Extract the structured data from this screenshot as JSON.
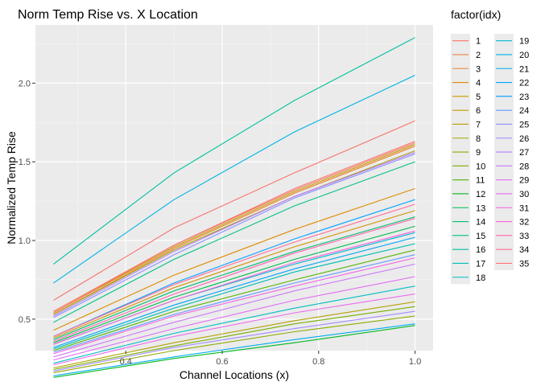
{
  "chart_data": {
    "type": "line",
    "title": "Norm Temp Rise vs. X Location",
    "xlabel": "Channel Locations (x)",
    "ylabel": "Normalized Temp Rise",
    "legend_title": "factor(idx)",
    "legend_placement": "right",
    "xlim": [
      0.2125,
      1.0375
    ],
    "ylim": [
      0.3,
      2.37
    ],
    "x_ticks": [
      0.4,
      0.6,
      0.8,
      1.0
    ],
    "x_tick_labels": [
      "0.4",
      "0.6",
      "0.8",
      "1.0"
    ],
    "y_ticks": [
      0.5,
      1.0,
      1.5,
      2.0
    ],
    "y_tick_labels": [
      "0.5",
      "1.0",
      "1.5",
      "2.0"
    ],
    "grid": true,
    "panel_background": "#ebebeb",
    "x": [
      0.25,
      0.5,
      0.75,
      1.0
    ],
    "series": [
      {
        "name": "1",
        "color": "#F8766D",
        "values": [
          0.62,
          1.08,
          1.43,
          1.76
        ]
      },
      {
        "name": "2",
        "color": "#F17E4F",
        "values": [
          0.55,
          0.97,
          1.32,
          1.62
        ]
      },
      {
        "name": "3",
        "color": "#EA8331",
        "values": [
          0.53,
          0.95,
          1.3,
          1.6
        ]
      },
      {
        "name": "4",
        "color": "#DE8C00",
        "values": [
          0.43,
          0.78,
          1.07,
          1.33
        ]
      },
      {
        "name": "5",
        "color": "#D29400",
        "values": [
          0.38,
          0.7,
          0.96,
          1.19
        ]
      },
      {
        "name": "6",
        "color": "#C49A00",
        "values": [
          0.54,
          0.96,
          1.31,
          1.61
        ]
      },
      {
        "name": "7",
        "color": "#B3A000",
        "values": [
          0.19,
          0.35,
          0.49,
          0.61
        ]
      },
      {
        "name": "8",
        "color": "#A3A500",
        "values": [
          0.53,
          0.94,
          1.28,
          1.57
        ]
      },
      {
        "name": "9",
        "color": "#8FAA00",
        "values": [
          0.16,
          0.3,
          0.42,
          0.52
        ]
      },
      {
        "name": "10",
        "color": "#76AF00",
        "values": [
          0.18,
          0.33,
          0.47,
          0.58
        ]
      },
      {
        "name": "11",
        "color": "#53B400",
        "values": [
          0.3,
          0.55,
          0.75,
          0.94
        ]
      },
      {
        "name": "12",
        "color": "#00B81F",
        "values": [
          0.13,
          0.25,
          0.35,
          0.46
        ]
      },
      {
        "name": "13",
        "color": "#00BB4E",
        "values": [
          0.35,
          0.64,
          0.88,
          1.09
        ]
      },
      {
        "name": "14",
        "color": "#00BE6C",
        "values": [
          0.37,
          0.68,
          0.93,
          1.15
        ]
      },
      {
        "name": "15",
        "color": "#00C085",
        "values": [
          0.48,
          0.88,
          1.22,
          1.5
        ]
      },
      {
        "name": "16",
        "color": "#00C19C",
        "values": [
          0.85,
          1.43,
          1.89,
          2.29
        ]
      },
      {
        "name": "17",
        "color": "#00C0B0",
        "values": [
          0.31,
          0.57,
          0.8,
          0.98
        ]
      },
      {
        "name": "18",
        "color": "#00BDC2",
        "values": [
          0.22,
          0.41,
          0.57,
          0.71
        ]
      },
      {
        "name": "19",
        "color": "#00B9D3",
        "values": [
          0.34,
          0.62,
          0.85,
          1.05
        ]
      },
      {
        "name": "20",
        "color": "#00B4E2",
        "values": [
          0.73,
          1.26,
          1.69,
          2.05
        ]
      },
      {
        "name": "21",
        "color": "#00ADEF",
        "values": [
          0.14,
          0.26,
          0.37,
          0.47
        ]
      },
      {
        "name": "22",
        "color": "#00A5FA",
        "values": [
          0.32,
          0.59,
          0.82,
          1.02
        ]
      },
      {
        "name": "23",
        "color": "#00A0FF",
        "values": [
          0.39,
          0.73,
          1.01,
          1.26
        ]
      },
      {
        "name": "24",
        "color": "#619CFF",
        "values": [
          0.29,
          0.53,
          0.73,
          0.91
        ]
      },
      {
        "name": "25",
        "color": "#8B93FF",
        "values": [
          0.51,
          0.91,
          1.27,
          1.55
        ]
      },
      {
        "name": "26",
        "color": "#A58AFF",
        "values": [
          0.17,
          0.32,
          0.44,
          0.55
        ]
      },
      {
        "name": "27",
        "color": "#BA7FFF",
        "values": [
          0.52,
          0.93,
          1.28,
          1.56
        ]
      },
      {
        "name": "28",
        "color": "#CD78F9",
        "values": [
          0.26,
          0.48,
          0.68,
          0.85
        ]
      },
      {
        "name": "29",
        "color": "#E06EF4",
        "values": [
          0.24,
          0.44,
          0.62,
          0.77
        ]
      },
      {
        "name": "30",
        "color": "#EC69EF",
        "values": [
          0.21,
          0.39,
          0.54,
          0.66
        ]
      },
      {
        "name": "31",
        "color": "#F663E3",
        "values": [
          0.28,
          0.52,
          0.71,
          0.89
        ]
      },
      {
        "name": "32",
        "color": "#FB61D7",
        "values": [
          0.34,
          0.62,
          0.86,
          1.06
        ]
      },
      {
        "name": "33",
        "color": "#FF64B0",
        "values": [
          0.36,
          0.66,
          0.92,
          1.14
        ]
      },
      {
        "name": "34",
        "color": "#FF6C96",
        "values": [
          0.39,
          0.72,
          0.99,
          1.23
        ]
      },
      {
        "name": "35",
        "color": "#FD7272",
        "values": [
          0.54,
          0.97,
          1.33,
          1.63
        ]
      }
    ]
  }
}
